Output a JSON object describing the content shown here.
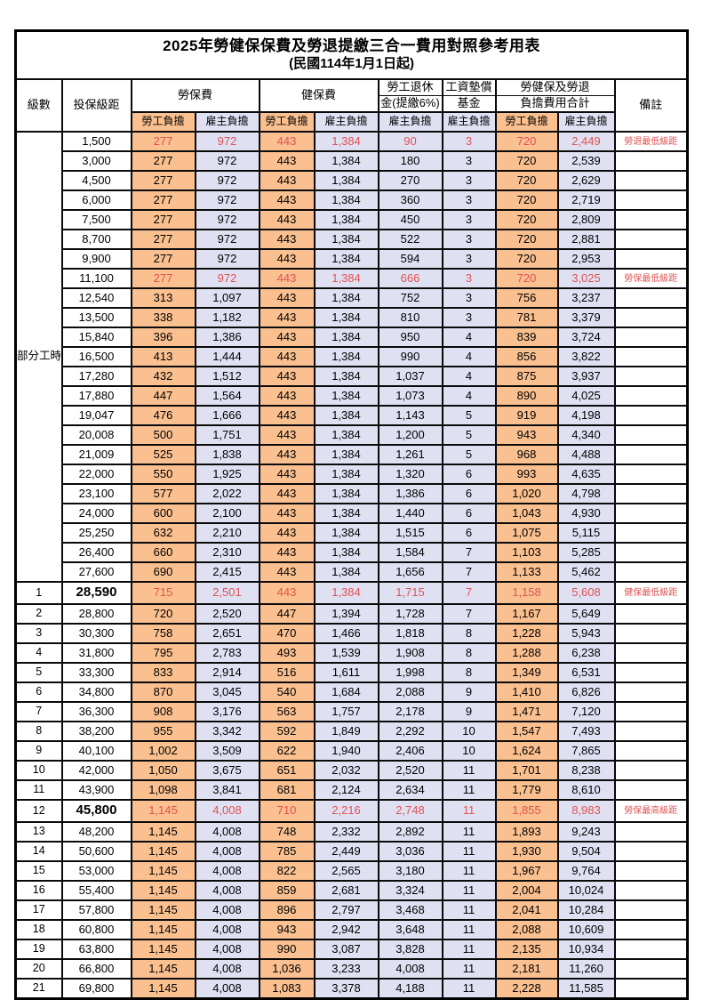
{
  "title": {
    "main": "2025年勞健保保費及勞退提繳三合一費用對照參考用表",
    "sub": "(民國114年1月1日起)"
  },
  "header": {
    "level_label": "級數",
    "bracket_label": "投保級距",
    "labor_group": "勞保費",
    "health_group": "健保費",
    "pension_line1": "勞工退休",
    "pension_line2": "金(提繳6%)",
    "wage_line1": "工資墊償",
    "wage_line2": "基金",
    "total_line1": "勞健保及勞退",
    "total_line2": "負擔費用合計",
    "remark_label": "備註",
    "employee_label": "勞工負擔",
    "employer_label": "雇主負擔"
  },
  "part_time": {
    "label": "部分工時",
    "rows": 23
  },
  "colors": {
    "employee_bg": "#FAC090",
    "employer_bg": "#DFE1F3",
    "highlight_red": "#E05252",
    "border": "#000000"
  },
  "rows": [
    {
      "level": null,
      "bracket": "1,500",
      "values": [
        "277",
        "972",
        "443",
        "1,384",
        "90",
        "3",
        "720",
        "2,449"
      ],
      "remark": "勞退最低級距",
      "red": true,
      "emphasis": false
    },
    {
      "level": null,
      "bracket": "3,000",
      "values": [
        "277",
        "972",
        "443",
        "1,384",
        "180",
        "3",
        "720",
        "2,539"
      ],
      "remark": "",
      "red": false,
      "emphasis": false
    },
    {
      "level": null,
      "bracket": "4,500",
      "values": [
        "277",
        "972",
        "443",
        "1,384",
        "270",
        "3",
        "720",
        "2,629"
      ],
      "remark": "",
      "red": false,
      "emphasis": false
    },
    {
      "level": null,
      "bracket": "6,000",
      "values": [
        "277",
        "972",
        "443",
        "1,384",
        "360",
        "3",
        "720",
        "2,719"
      ],
      "remark": "",
      "red": false,
      "emphasis": false
    },
    {
      "level": null,
      "bracket": "7,500",
      "values": [
        "277",
        "972",
        "443",
        "1,384",
        "450",
        "3",
        "720",
        "2,809"
      ],
      "remark": "",
      "red": false,
      "emphasis": false
    },
    {
      "level": null,
      "bracket": "8,700",
      "values": [
        "277",
        "972",
        "443",
        "1,384",
        "522",
        "3",
        "720",
        "2,881"
      ],
      "remark": "",
      "red": false,
      "emphasis": false
    },
    {
      "level": null,
      "bracket": "9,900",
      "values": [
        "277",
        "972",
        "443",
        "1,384",
        "594",
        "3",
        "720",
        "2,953"
      ],
      "remark": "",
      "red": false,
      "emphasis": false
    },
    {
      "level": null,
      "bracket": "11,100",
      "values": [
        "277",
        "972",
        "443",
        "1,384",
        "666",
        "3",
        "720",
        "3,025"
      ],
      "remark": "勞保最低級距",
      "red": true,
      "emphasis": false
    },
    {
      "level": null,
      "bracket": "12,540",
      "values": [
        "313",
        "1,097",
        "443",
        "1,384",
        "752",
        "3",
        "756",
        "3,237"
      ],
      "remark": "",
      "red": false,
      "emphasis": false
    },
    {
      "level": null,
      "bracket": "13,500",
      "values": [
        "338",
        "1,182",
        "443",
        "1,384",
        "810",
        "3",
        "781",
        "3,379"
      ],
      "remark": "",
      "red": false,
      "emphasis": false
    },
    {
      "level": null,
      "bracket": "15,840",
      "values": [
        "396",
        "1,386",
        "443",
        "1,384",
        "950",
        "4",
        "839",
        "3,724"
      ],
      "remark": "",
      "red": false,
      "emphasis": false
    },
    {
      "level": null,
      "bracket": "16,500",
      "values": [
        "413",
        "1,444",
        "443",
        "1,384",
        "990",
        "4",
        "856",
        "3,822"
      ],
      "remark": "",
      "red": false,
      "emphasis": false
    },
    {
      "level": null,
      "bracket": "17,280",
      "values": [
        "432",
        "1,512",
        "443",
        "1,384",
        "1,037",
        "4",
        "875",
        "3,937"
      ],
      "remark": "",
      "red": false,
      "emphasis": false
    },
    {
      "level": null,
      "bracket": "17,880",
      "values": [
        "447",
        "1,564",
        "443",
        "1,384",
        "1,073",
        "4",
        "890",
        "4,025"
      ],
      "remark": "",
      "red": false,
      "emphasis": false
    },
    {
      "level": null,
      "bracket": "19,047",
      "values": [
        "476",
        "1,666",
        "443",
        "1,384",
        "1,143",
        "5",
        "919",
        "4,198"
      ],
      "remark": "",
      "red": false,
      "emphasis": false
    },
    {
      "level": null,
      "bracket": "20,008",
      "values": [
        "500",
        "1,751",
        "443",
        "1,384",
        "1,200",
        "5",
        "943",
        "4,340"
      ],
      "remark": "",
      "red": false,
      "emphasis": false
    },
    {
      "level": null,
      "bracket": "21,009",
      "values": [
        "525",
        "1,838",
        "443",
        "1,384",
        "1,261",
        "5",
        "968",
        "4,488"
      ],
      "remark": "",
      "red": false,
      "emphasis": false
    },
    {
      "level": null,
      "bracket": "22,000",
      "values": [
        "550",
        "1,925",
        "443",
        "1,384",
        "1,320",
        "6",
        "993",
        "4,635"
      ],
      "remark": "",
      "red": false,
      "emphasis": false
    },
    {
      "level": null,
      "bracket": "23,100",
      "values": [
        "577",
        "2,022",
        "443",
        "1,384",
        "1,386",
        "6",
        "1,020",
        "4,798"
      ],
      "remark": "",
      "red": false,
      "emphasis": false
    },
    {
      "level": null,
      "bracket": "24,000",
      "values": [
        "600",
        "2,100",
        "443",
        "1,384",
        "1,440",
        "6",
        "1,043",
        "4,930"
      ],
      "remark": "",
      "red": false,
      "emphasis": false
    },
    {
      "level": null,
      "bracket": "25,250",
      "values": [
        "632",
        "2,210",
        "443",
        "1,384",
        "1,515",
        "6",
        "1,075",
        "5,115"
      ],
      "remark": "",
      "red": false,
      "emphasis": false
    },
    {
      "level": null,
      "bracket": "26,400",
      "values": [
        "660",
        "2,310",
        "443",
        "1,384",
        "1,584",
        "7",
        "1,103",
        "5,285"
      ],
      "remark": "",
      "red": false,
      "emphasis": false
    },
    {
      "level": null,
      "bracket": "27,600",
      "values": [
        "690",
        "2,415",
        "443",
        "1,384",
        "1,656",
        "7",
        "1,133",
        "5,462"
      ],
      "remark": "",
      "red": false,
      "emphasis": false
    },
    {
      "level": "1",
      "bracket": "28,590",
      "values": [
        "715",
        "2,501",
        "443",
        "1,384",
        "1,715",
        "7",
        "1,158",
        "5,608"
      ],
      "remark": "健保最低級距",
      "red": true,
      "emphasis": true
    },
    {
      "level": "2",
      "bracket": "28,800",
      "values": [
        "720",
        "2,520",
        "447",
        "1,394",
        "1,728",
        "7",
        "1,167",
        "5,649"
      ],
      "remark": "",
      "red": false,
      "emphasis": false
    },
    {
      "level": "3",
      "bracket": "30,300",
      "values": [
        "758",
        "2,651",
        "470",
        "1,466",
        "1,818",
        "8",
        "1,228",
        "5,943"
      ],
      "remark": "",
      "red": false,
      "emphasis": false
    },
    {
      "level": "4",
      "bracket": "31,800",
      "values": [
        "795",
        "2,783",
        "493",
        "1,539",
        "1,908",
        "8",
        "1,288",
        "6,238"
      ],
      "remark": "",
      "red": false,
      "emphasis": false
    },
    {
      "level": "5",
      "bracket": "33,300",
      "values": [
        "833",
        "2,914",
        "516",
        "1,611",
        "1,998",
        "8",
        "1,349",
        "6,531"
      ],
      "remark": "",
      "red": false,
      "emphasis": false
    },
    {
      "level": "6",
      "bracket": "34,800",
      "values": [
        "870",
        "3,045",
        "540",
        "1,684",
        "2,088",
        "9",
        "1,410",
        "6,826"
      ],
      "remark": "",
      "red": false,
      "emphasis": false
    },
    {
      "level": "7",
      "bracket": "36,300",
      "values": [
        "908",
        "3,176",
        "563",
        "1,757",
        "2,178",
        "9",
        "1,471",
        "7,120"
      ],
      "remark": "",
      "red": false,
      "emphasis": false
    },
    {
      "level": "8",
      "bracket": "38,200",
      "values": [
        "955",
        "3,342",
        "592",
        "1,849",
        "2,292",
        "10",
        "1,547",
        "7,493"
      ],
      "remark": "",
      "red": false,
      "emphasis": false
    },
    {
      "level": "9",
      "bracket": "40,100",
      "values": [
        "1,002",
        "3,509",
        "622",
        "1,940",
        "2,406",
        "10",
        "1,624",
        "7,865"
      ],
      "remark": "",
      "red": false,
      "emphasis": false
    },
    {
      "level": "10",
      "bracket": "42,000",
      "values": [
        "1,050",
        "3,675",
        "651",
        "2,032",
        "2,520",
        "11",
        "1,701",
        "8,238"
      ],
      "remark": "",
      "red": false,
      "emphasis": false
    },
    {
      "level": "11",
      "bracket": "43,900",
      "values": [
        "1,098",
        "3,841",
        "681",
        "2,124",
        "2,634",
        "11",
        "1,779",
        "8,610"
      ],
      "remark": "",
      "red": false,
      "emphasis": false
    },
    {
      "level": "12",
      "bracket": "45,800",
      "values": [
        "1,145",
        "4,008",
        "710",
        "2,216",
        "2,748",
        "11",
        "1,855",
        "8,983"
      ],
      "remark": "勞保最高級距",
      "red": true,
      "emphasis": true
    },
    {
      "level": "13",
      "bracket": "48,200",
      "values": [
        "1,145",
        "4,008",
        "748",
        "2,332",
        "2,892",
        "11",
        "1,893",
        "9,243"
      ],
      "remark": "",
      "red": false,
      "emphasis": false
    },
    {
      "level": "14",
      "bracket": "50,600",
      "values": [
        "1,145",
        "4,008",
        "785",
        "2,449",
        "3,036",
        "11",
        "1,930",
        "9,504"
      ],
      "remark": "",
      "red": false,
      "emphasis": false
    },
    {
      "level": "15",
      "bracket": "53,000",
      "values": [
        "1,145",
        "4,008",
        "822",
        "2,565",
        "3,180",
        "11",
        "1,967",
        "9,764"
      ],
      "remark": "",
      "red": false,
      "emphasis": false
    },
    {
      "level": "16",
      "bracket": "55,400",
      "values": [
        "1,145",
        "4,008",
        "859",
        "2,681",
        "3,324",
        "11",
        "2,004",
        "10,024"
      ],
      "remark": "",
      "red": false,
      "emphasis": false
    },
    {
      "level": "17",
      "bracket": "57,800",
      "values": [
        "1,145",
        "4,008",
        "896",
        "2,797",
        "3,468",
        "11",
        "2,041",
        "10,284"
      ],
      "remark": "",
      "red": false,
      "emphasis": false
    },
    {
      "level": "18",
      "bracket": "60,800",
      "values": [
        "1,145",
        "4,008",
        "943",
        "2,942",
        "3,648",
        "11",
        "2,088",
        "10,609"
      ],
      "remark": "",
      "red": false,
      "emphasis": false
    },
    {
      "level": "19",
      "bracket": "63,800",
      "values": [
        "1,145",
        "4,008",
        "990",
        "3,087",
        "3,828",
        "11",
        "2,135",
        "10,934"
      ],
      "remark": "",
      "red": false,
      "emphasis": false
    },
    {
      "level": "20",
      "bracket": "66,800",
      "values": [
        "1,145",
        "4,008",
        "1,036",
        "3,233",
        "4,008",
        "11",
        "2,181",
        "11,260"
      ],
      "remark": "",
      "red": false,
      "emphasis": false
    },
    {
      "level": "21",
      "bracket": "69,800",
      "values": [
        "1,145",
        "4,008",
        "1,083",
        "3,378",
        "4,188",
        "11",
        "2,228",
        "11,585"
      ],
      "remark": "",
      "red": false,
      "emphasis": false
    }
  ]
}
